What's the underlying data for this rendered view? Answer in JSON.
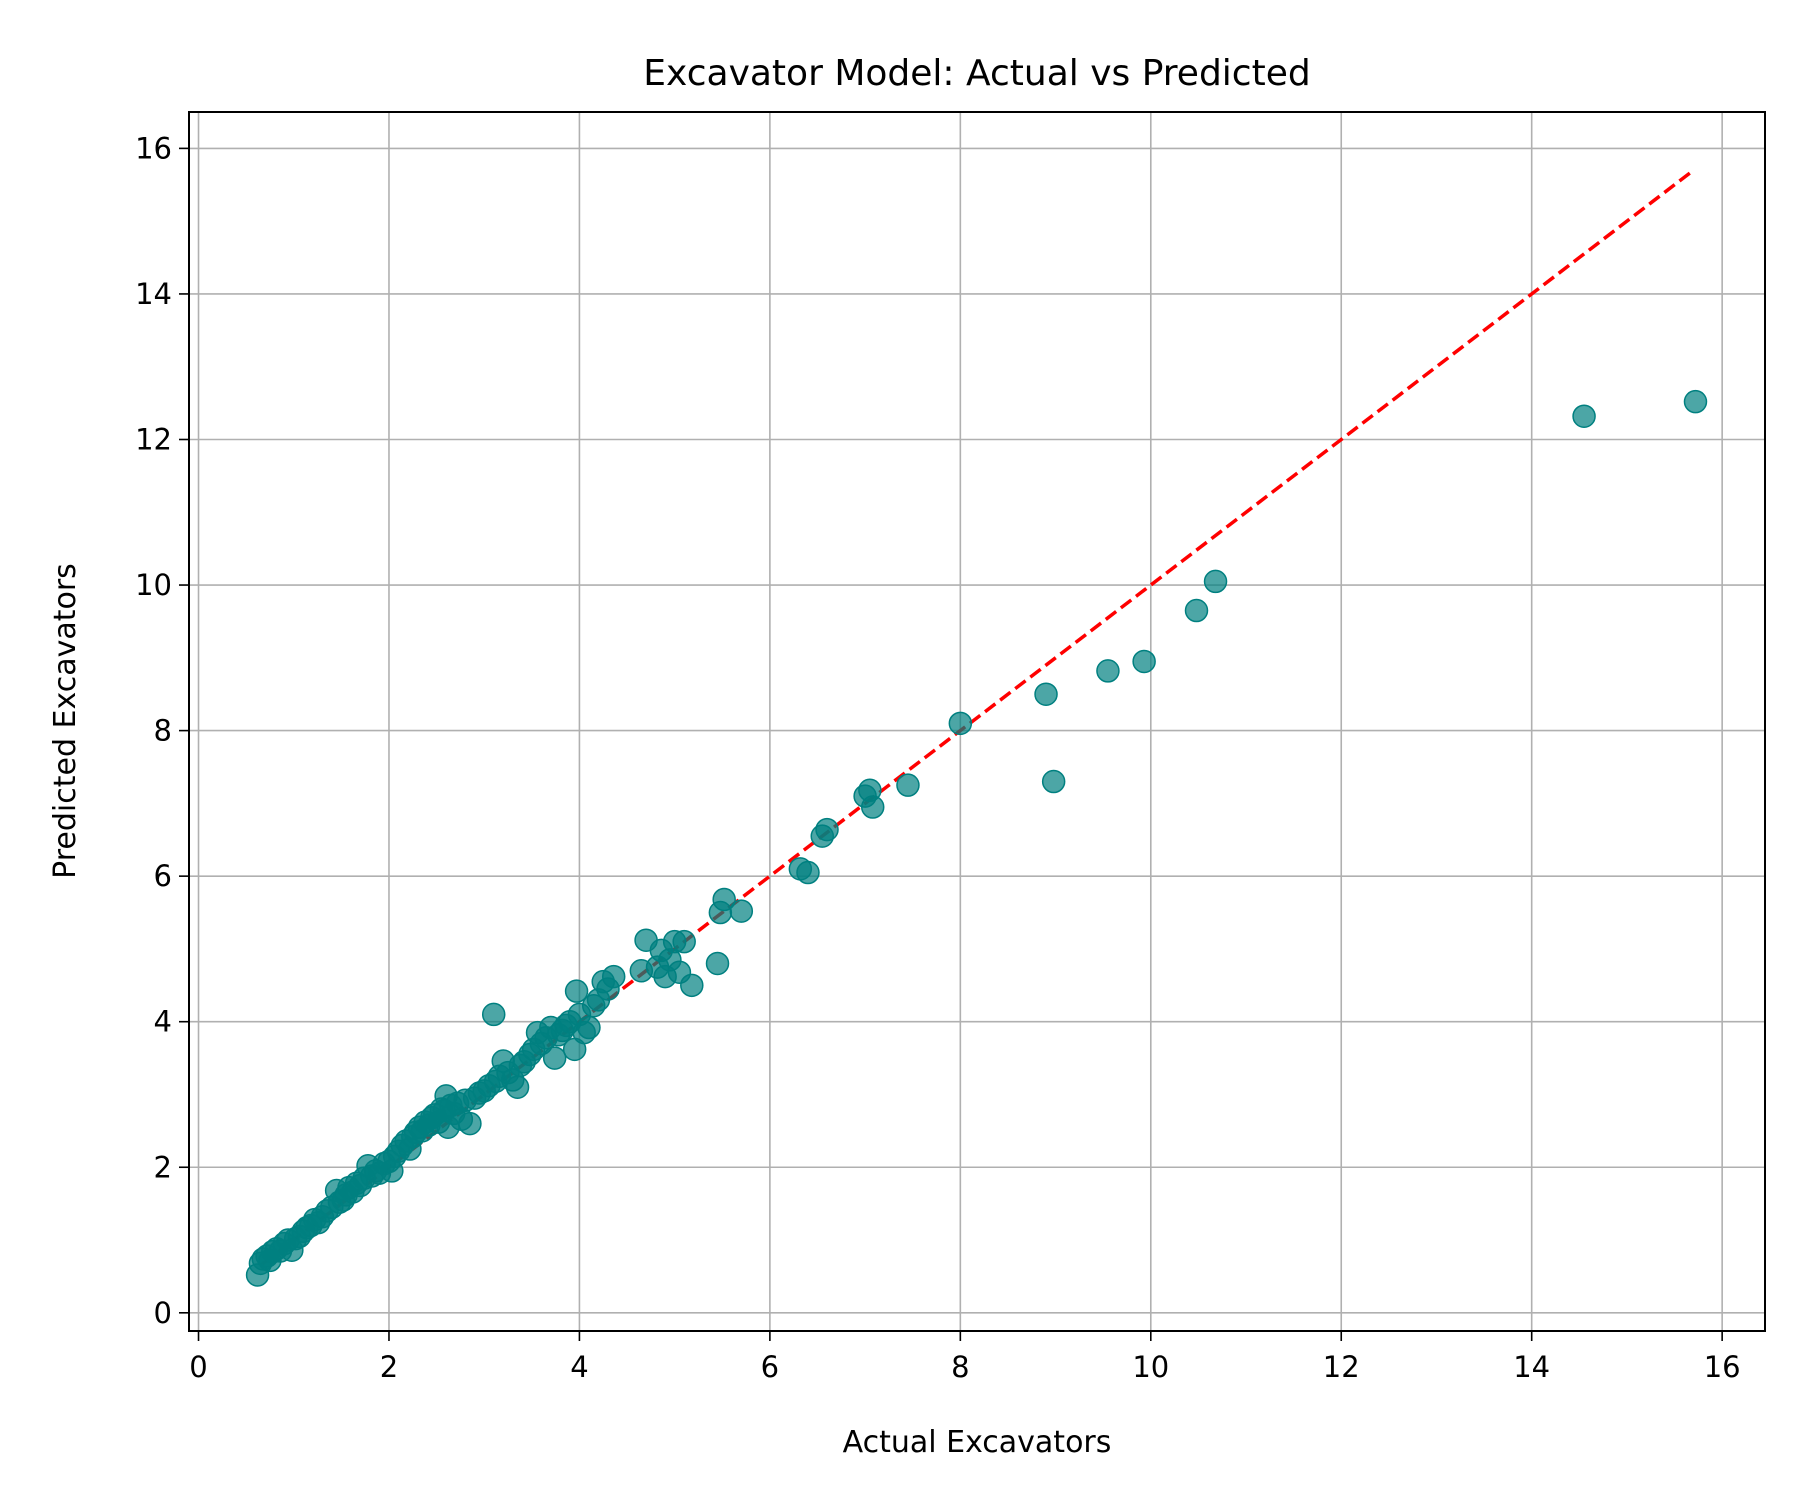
{
  "chart_data": {
    "type": "scatter",
    "title": "Excavator Model: Actual vs Predicted",
    "xlabel": "Actual Excavators",
    "ylabel": "Predicted Excavators",
    "xlim": [
      -0.1,
      16.45
    ],
    "ylim": [
      -0.25,
      16.5
    ],
    "xticks": [
      0,
      2,
      4,
      6,
      8,
      10,
      12,
      14,
      16
    ],
    "yticks": [
      0,
      2,
      4,
      6,
      8,
      10,
      12,
      14,
      16
    ],
    "grid": true,
    "colors": {
      "points": "#008080",
      "reference_line": "#ff0000",
      "grid": "#b0b0b0"
    },
    "reference_line": {
      "style": "dashed",
      "x": [
        0.65,
        15.7
      ],
      "y": [
        0.65,
        15.7
      ]
    },
    "points": [
      [
        0.62,
        0.52
      ],
      [
        0.65,
        0.68
      ],
      [
        0.68,
        0.74
      ],
      [
        0.72,
        0.78
      ],
      [
        0.75,
        0.72
      ],
      [
        0.78,
        0.84
      ],
      [
        0.82,
        0.88
      ],
      [
        0.86,
        0.85
      ],
      [
        0.9,
        0.95
      ],
      [
        0.94,
        1.0
      ],
      [
        0.98,
        0.86
      ],
      [
        1.02,
        1.02
      ],
      [
        1.06,
        1.05
      ],
      [
        1.1,
        1.12
      ],
      [
        1.14,
        1.17
      ],
      [
        1.18,
        1.2
      ],
      [
        1.22,
        1.28
      ],
      [
        1.26,
        1.24
      ],
      [
        1.3,
        1.32
      ],
      [
        1.35,
        1.4
      ],
      [
        1.4,
        1.45
      ],
      [
        1.45,
        1.68
      ],
      [
        1.48,
        1.52
      ],
      [
        1.52,
        1.55
      ],
      [
        1.55,
        1.62
      ],
      [
        1.58,
        1.72
      ],
      [
        1.62,
        1.66
      ],
      [
        1.66,
        1.78
      ],
      [
        1.7,
        1.75
      ],
      [
        1.74,
        1.85
      ],
      [
        1.78,
        2.02
      ],
      [
        1.82,
        1.88
      ],
      [
        1.86,
        1.95
      ],
      [
        1.9,
        1.92
      ],
      [
        1.95,
        2.05
      ],
      [
        2.0,
        2.08
      ],
      [
        2.03,
        1.95
      ],
      [
        2.06,
        2.15
      ],
      [
        2.1,
        2.22
      ],
      [
        2.14,
        2.3
      ],
      [
        2.18,
        2.36
      ],
      [
        2.22,
        2.25
      ],
      [
        2.25,
        2.42
      ],
      [
        2.28,
        2.48
      ],
      [
        2.32,
        2.55
      ],
      [
        2.35,
        2.5
      ],
      [
        2.38,
        2.62
      ],
      [
        2.42,
        2.58
      ],
      [
        2.45,
        2.68
      ],
      [
        2.48,
        2.72
      ],
      [
        2.52,
        2.62
      ],
      [
        2.55,
        2.8
      ],
      [
        2.58,
        2.78
      ],
      [
        2.6,
        2.98
      ],
      [
        2.62,
        2.55
      ],
      [
        2.65,
        2.85
      ],
      [
        2.68,
        2.74
      ],
      [
        2.72,
        2.88
      ],
      [
        2.76,
        2.66
      ],
      [
        2.8,
        2.92
      ],
      [
        2.85,
        2.6
      ],
      [
        2.9,
        2.95
      ],
      [
        2.95,
        3.02
      ],
      [
        3.0,
        3.05
      ],
      [
        3.05,
        3.12
      ],
      [
        3.1,
        4.1
      ],
      [
        3.12,
        3.18
      ],
      [
        3.16,
        3.25
      ],
      [
        3.2,
        3.46
      ],
      [
        3.25,
        3.3
      ],
      [
        3.3,
        3.2
      ],
      [
        3.35,
        3.1
      ],
      [
        3.38,
        3.4
      ],
      [
        3.42,
        3.45
      ],
      [
        3.48,
        3.55
      ],
      [
        3.52,
        3.62
      ],
      [
        3.56,
        3.85
      ],
      [
        3.6,
        3.7
      ],
      [
        3.65,
        3.78
      ],
      [
        3.7,
        3.92
      ],
      [
        3.74,
        3.5
      ],
      [
        3.78,
        3.82
      ],
      [
        3.82,
        3.88
      ],
      [
        3.86,
        3.95
      ],
      [
        3.9,
        4.0
      ],
      [
        3.95,
        3.62
      ],
      [
        3.97,
        4.42
      ],
      [
        4.0,
        4.1
      ],
      [
        4.05,
        3.85
      ],
      [
        4.1,
        3.92
      ],
      [
        4.15,
        4.22
      ],
      [
        4.2,
        4.3
      ],
      [
        4.25,
        4.55
      ],
      [
        4.3,
        4.45
      ],
      [
        4.36,
        4.62
      ],
      [
        4.65,
        4.7
      ],
      [
        4.7,
        5.12
      ],
      [
        4.82,
        4.75
      ],
      [
        4.86,
        4.98
      ],
      [
        4.9,
        4.62
      ],
      [
        4.95,
        4.85
      ],
      [
        5.0,
        5.1
      ],
      [
        5.05,
        4.68
      ],
      [
        5.1,
        5.1
      ],
      [
        5.18,
        4.5
      ],
      [
        5.45,
        4.8
      ],
      [
        5.48,
        5.5
      ],
      [
        5.52,
        5.68
      ],
      [
        5.7,
        5.52
      ],
      [
        6.32,
        6.1
      ],
      [
        6.4,
        6.05
      ],
      [
        6.55,
        6.55
      ],
      [
        6.6,
        6.64
      ],
      [
        7.0,
        7.1
      ],
      [
        7.05,
        7.18
      ],
      [
        7.08,
        6.95
      ],
      [
        7.45,
        7.25
      ],
      [
        8.0,
        8.1
      ],
      [
        8.9,
        8.5
      ],
      [
        8.98,
        7.3
      ],
      [
        9.55,
        8.82
      ],
      [
        9.93,
        8.95
      ],
      [
        10.48,
        9.65
      ],
      [
        10.68,
        10.05
      ],
      [
        14.55,
        12.32
      ],
      [
        15.72,
        12.52
      ]
    ]
  }
}
